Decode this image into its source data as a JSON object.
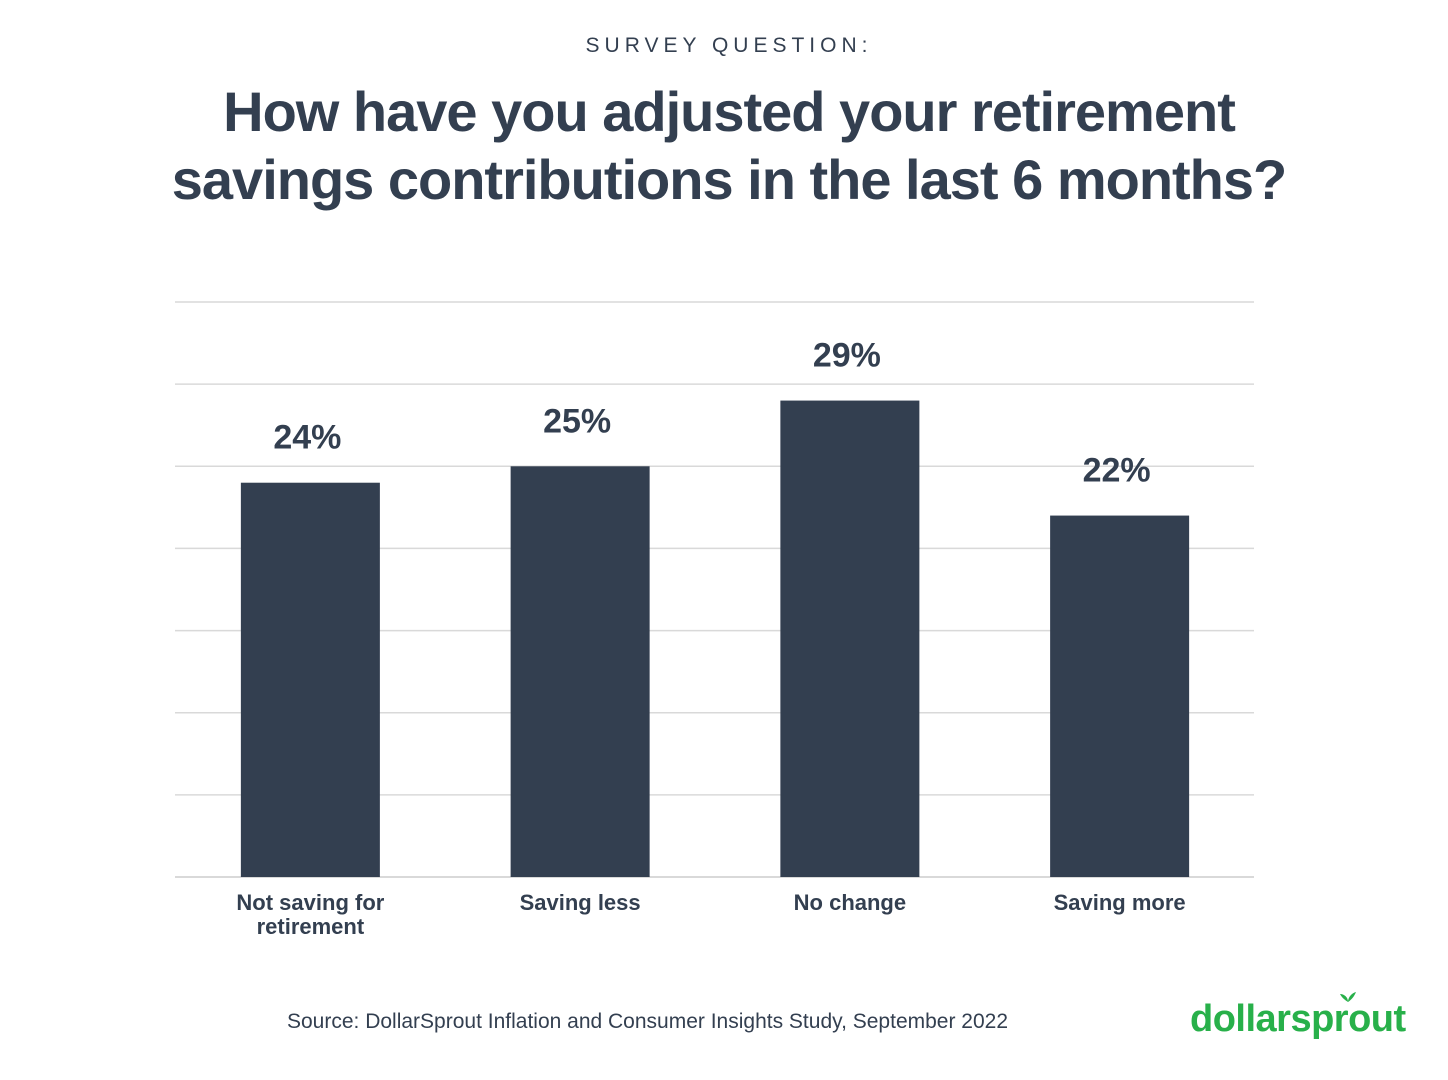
{
  "header": {
    "kicker": "SURVEY QUESTION:",
    "title_line1": "How have you adjusted your retirement",
    "title_line2": "savings contributions in the last 6 months?"
  },
  "footer": {
    "source": "Source: DollarSprout Inflation and Consumer Insights Study, September 2022",
    "brand": "dollarsprout"
  },
  "colors": {
    "bar": "#333f50",
    "text": "#333f50",
    "grid": "#d9d9d9",
    "brand": "#28b04a"
  },
  "chart_data": {
    "type": "bar",
    "title": "How have you adjusted your retirement savings contributions in the last 6 months?",
    "categories": [
      [
        "Not saving for",
        "retirement"
      ],
      [
        "Saving less"
      ],
      [
        "No change"
      ],
      [
        "Saving more"
      ]
    ],
    "values": [
      24,
      25,
      29,
      22
    ],
    "value_labels": [
      "24%",
      "25%",
      "29%",
      "22%"
    ],
    "ylim": [
      0,
      35
    ],
    "grid": true,
    "legend": "none"
  }
}
